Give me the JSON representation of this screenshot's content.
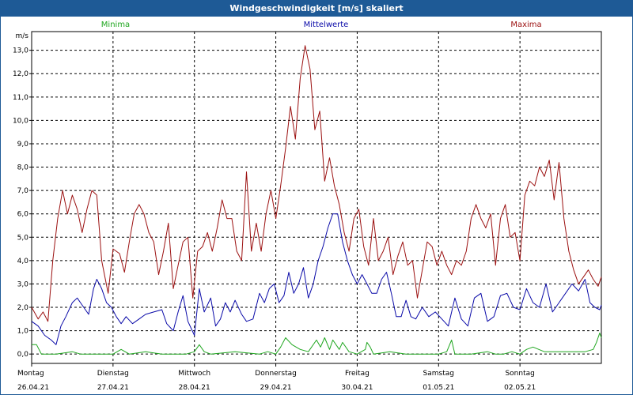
{
  "window": {
    "title": "Windgeschwindigkeit [m/s] skaliert"
  },
  "colors": {
    "titlebar": "#1e5a96",
    "minima": "#1fa61f",
    "mittel": "#0a0aa8",
    "maxima": "#9b1010",
    "grid": "#000000"
  },
  "chart_data": {
    "type": "line",
    "ylabel": "m/s",
    "ylim": [
      -0.4,
      13.8
    ],
    "yticks": [
      0.0,
      1.0,
      2.0,
      3.0,
      4.0,
      5.0,
      6.0,
      7.0,
      8.0,
      9.0,
      10.0,
      11.0,
      12.0,
      13.0
    ],
    "ytick_labels": [
      "0,0",
      "1,0",
      "2,0",
      "3,0",
      "4,0",
      "5,0",
      "6,0",
      "7,0",
      "8,0",
      "9,0",
      "10,0",
      "11,0",
      "12,0",
      "13,0"
    ],
    "grid": true,
    "legend_position": "top",
    "x_range_days": [
      0,
      7
    ],
    "x_ticks": [
      {
        "day": "Montag",
        "date": "26.04.21"
      },
      {
        "day": "Dienstag",
        "date": "27.04.21"
      },
      {
        "day": "Mittwoch",
        "date": "28.04.21"
      },
      {
        "day": "Donnerstag",
        "date": "29.04.21"
      },
      {
        "day": "Freitag",
        "date": "30.04.21"
      },
      {
        "day": "Samstag",
        "date": "01.05.21"
      },
      {
        "day": "Sonntag",
        "date": "02.05.21"
      }
    ],
    "series": [
      {
        "name": "Minima",
        "color": "#1fa61f",
        "x": [
          0.0,
          0.06,
          0.12,
          0.3,
          0.5,
          0.6,
          0.8,
          1.0,
          1.1,
          1.2,
          1.4,
          1.6,
          1.9,
          2.0,
          2.06,
          2.12,
          2.2,
          2.5,
          2.8,
          2.9,
          3.0,
          3.06,
          3.12,
          3.2,
          3.3,
          3.4,
          3.5,
          3.55,
          3.6,
          3.66,
          3.7,
          3.78,
          3.82,
          3.9,
          4.0,
          4.1,
          4.12,
          4.16,
          4.2,
          4.4,
          4.6,
          4.8,
          5.0,
          5.1,
          5.16,
          5.2,
          5.4,
          5.6,
          5.7,
          5.8,
          5.9,
          6.0,
          6.08,
          6.16,
          6.3,
          6.4,
          6.6,
          6.8,
          6.9,
          6.94,
          6.98,
          7.0
        ],
        "values": [
          0.4,
          0.4,
          0.0,
          0.0,
          0.1,
          0.0,
          0.0,
          0.0,
          0.2,
          0.0,
          0.1,
          0.0,
          0.0,
          0.1,
          0.4,
          0.1,
          0.0,
          0.1,
          0.0,
          0.1,
          0.0,
          0.3,
          0.7,
          0.4,
          0.2,
          0.1,
          0.6,
          0.3,
          0.7,
          0.2,
          0.6,
          0.2,
          0.5,
          0.1,
          0.0,
          0.2,
          0.5,
          0.3,
          0.0,
          0.1,
          0.0,
          0.0,
          0.0,
          0.1,
          0.6,
          0.0,
          0.0,
          0.1,
          0.0,
          0.0,
          0.1,
          0.0,
          0.2,
          0.3,
          0.1,
          0.1,
          0.1,
          0.1,
          0.2,
          0.5,
          0.9,
          0.7
        ]
      },
      {
        "name": "Mittelwerte",
        "color": "#0a0aa8",
        "x": [
          0.0,
          0.08,
          0.16,
          0.24,
          0.3,
          0.36,
          0.42,
          0.5,
          0.56,
          0.6,
          0.7,
          0.76,
          0.8,
          0.86,
          0.92,
          0.98,
          1.04,
          1.1,
          1.16,
          1.24,
          1.32,
          1.4,
          1.5,
          1.6,
          1.66,
          1.74,
          1.8,
          1.86,
          1.92,
          2.0,
          2.06,
          2.12,
          2.2,
          2.26,
          2.32,
          2.38,
          2.44,
          2.5,
          2.58,
          2.64,
          2.72,
          2.8,
          2.86,
          2.92,
          2.98,
          3.04,
          3.1,
          3.16,
          3.22,
          3.28,
          3.34,
          3.4,
          3.46,
          3.52,
          3.58,
          3.64,
          3.7,
          3.76,
          3.82,
          3.88,
          3.94,
          4.0,
          4.06,
          4.12,
          4.18,
          4.24,
          4.3,
          4.36,
          4.42,
          4.48,
          4.54,
          4.6,
          4.66,
          4.72,
          4.8,
          4.88,
          4.96,
          5.04,
          5.12,
          5.2,
          5.28,
          5.36,
          5.44,
          5.52,
          5.6,
          5.68,
          5.76,
          5.84,
          5.92,
          6.0,
          6.08,
          6.16,
          6.24,
          6.32,
          6.4,
          6.48,
          6.56,
          6.64,
          6.72,
          6.8,
          6.86,
          6.92,
          6.98,
          7.0
        ],
        "values": [
          1.4,
          1.2,
          0.8,
          0.6,
          0.4,
          1.2,
          1.6,
          2.2,
          2.4,
          2.2,
          1.7,
          2.8,
          3.2,
          2.8,
          2.2,
          2.0,
          1.6,
          1.3,
          1.6,
          1.3,
          1.5,
          1.7,
          1.8,
          1.9,
          1.3,
          1.0,
          1.8,
          2.5,
          1.4,
          0.8,
          2.8,
          1.8,
          2.4,
          1.2,
          1.5,
          2.2,
          1.8,
          2.3,
          1.7,
          1.4,
          1.5,
          2.6,
          2.2,
          2.8,
          3.0,
          2.2,
          2.5,
          3.5,
          2.6,
          3.0,
          3.7,
          2.4,
          3.0,
          4.0,
          4.6,
          5.4,
          6.0,
          6.0,
          4.8,
          4.0,
          3.4,
          3.0,
          3.4,
          3.0,
          2.6,
          2.6,
          3.2,
          3.5,
          2.6,
          1.6,
          1.6,
          2.3,
          1.6,
          1.5,
          2.0,
          1.6,
          1.8,
          1.5,
          1.2,
          2.4,
          1.5,
          1.2,
          2.4,
          2.6,
          1.4,
          1.6,
          2.5,
          2.6,
          2.0,
          1.9,
          2.8,
          2.2,
          2.0,
          3.0,
          1.8,
          2.2,
          2.6,
          3.0,
          2.7,
          3.2,
          2.2,
          2.0,
          1.9,
          2.1
        ]
      },
      {
        "name": "Maxima",
        "color": "#9b1010",
        "x": [
          0.0,
          0.08,
          0.14,
          0.2,
          0.26,
          0.32,
          0.38,
          0.44,
          0.5,
          0.56,
          0.62,
          0.68,
          0.74,
          0.8,
          0.86,
          0.94,
          1.0,
          1.08,
          1.14,
          1.2,
          1.26,
          1.32,
          1.38,
          1.44,
          1.5,
          1.56,
          1.62,
          1.68,
          1.74,
          1.8,
          1.86,
          1.92,
          1.98,
          2.04,
          2.1,
          2.16,
          2.22,
          2.28,
          2.34,
          2.4,
          2.46,
          2.52,
          2.58,
          2.64,
          2.7,
          2.76,
          2.82,
          2.88,
          2.94,
          3.0,
          3.06,
          3.12,
          3.18,
          3.24,
          3.3,
          3.36,
          3.42,
          3.48,
          3.54,
          3.6,
          3.66,
          3.72,
          3.78,
          3.84,
          3.9,
          3.96,
          4.02,
          4.08,
          4.14,
          4.2,
          4.26,
          4.32,
          4.38,
          4.44,
          4.5,
          4.56,
          4.62,
          4.68,
          4.74,
          4.8,
          4.86,
          4.92,
          4.98,
          5.04,
          5.1,
          5.16,
          5.22,
          5.28,
          5.34,
          5.4,
          5.46,
          5.52,
          5.58,
          5.64,
          5.7,
          5.76,
          5.82,
          5.88,
          5.94,
          6.0,
          6.06,
          6.12,
          6.18,
          6.24,
          6.3,
          6.36,
          6.42,
          6.48,
          6.54,
          6.6,
          6.66,
          6.72,
          6.78,
          6.84,
          6.9,
          6.96,
          7.0
        ],
        "values": [
          2.0,
          1.5,
          1.8,
          1.4,
          4.0,
          5.8,
          7.0,
          6.0,
          6.8,
          6.2,
          5.2,
          6.2,
          7.0,
          6.8,
          4.0,
          2.6,
          4.5,
          4.3,
          3.5,
          4.8,
          6.0,
          6.4,
          6.0,
          5.2,
          4.8,
          3.4,
          4.4,
          5.6,
          2.8,
          3.8,
          4.8,
          5.0,
          2.4,
          4.4,
          4.6,
          5.2,
          4.4,
          5.4,
          6.6,
          5.8,
          5.8,
          4.4,
          4.0,
          7.8,
          4.4,
          5.6,
          4.4,
          6.0,
          7.0,
          5.8,
          7.2,
          8.8,
          10.6,
          9.2,
          11.8,
          13.2,
          12.2,
          9.6,
          10.4,
          7.4,
          8.4,
          7.2,
          6.4,
          5.2,
          4.4,
          5.8,
          6.2,
          4.6,
          3.8,
          5.8,
          4.0,
          4.4,
          5.0,
          3.4,
          4.2,
          4.8,
          3.8,
          4.0,
          2.4,
          3.6,
          4.8,
          4.6,
          3.8,
          4.4,
          3.8,
          3.4,
          4.0,
          3.8,
          4.4,
          5.8,
          6.4,
          5.8,
          5.4,
          6.0,
          3.8,
          5.8,
          6.4,
          5.0,
          5.2,
          4.0,
          6.8,
          7.4,
          7.2,
          8.0,
          7.6,
          8.3,
          6.6,
          8.2,
          5.8,
          4.4,
          3.6,
          3.0,
          3.3,
          3.6,
          3.2,
          2.9,
          3.3
        ]
      }
    ]
  }
}
